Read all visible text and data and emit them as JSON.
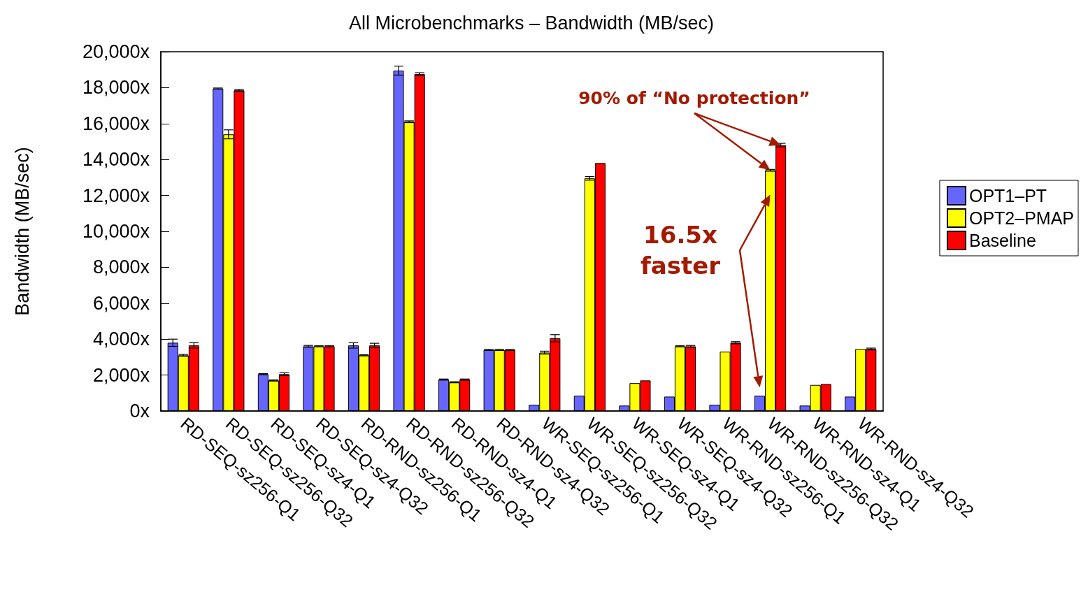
{
  "chart_data": {
    "type": "bar",
    "title": "All Microbenchmarks – Bandwidth (MB/sec)",
    "ylabel": "Bandwidth (MB/sec)",
    "categories": [
      "RD-SEQ-sz256-Q1",
      "RD-SEQ-sz256-Q32",
      "RD-SEQ-sz4-Q1",
      "RD-SEQ-sz4-Q32",
      "RD-RND-sz256-Q1",
      "RD-RND-sz256-Q32",
      "RD-RND-sz4-Q1",
      "RD-RND-sz4-Q32",
      "WR-SEQ-sz256-Q1",
      "WR-SEQ-sz256-Q32",
      "WR-SEQ-sz4-Q1",
      "WR-SEQ-sz4-Q32",
      "WR-RND-sz256-Q1",
      "WR-RND-sz256-Q32",
      "WR-RND-sz4-Q1",
      "WR-RND-sz4-Q32"
    ],
    "series": [
      {
        "name": "OPT1–PT",
        "color": "#6666ff",
        "values": [
          3800,
          17950,
          2050,
          3600,
          3650,
          18950,
          1750,
          3400,
          350,
          850,
          300,
          800,
          350,
          850,
          300,
          800
        ],
        "errors": [
          200,
          30,
          30,
          50,
          150,
          250,
          30,
          30,
          null,
          null,
          null,
          null,
          null,
          null,
          null,
          null
        ]
      },
      {
        "name": "OPT2–PMAP",
        "color": "#ffff00",
        "values": [
          3100,
          15400,
          1700,
          3600,
          3100,
          16100,
          1600,
          3400,
          3250,
          12950,
          1550,
          3600,
          3300,
          13400,
          1450,
          3450
        ],
        "errors": [
          50,
          250,
          30,
          30,
          30,
          50,
          30,
          30,
          80,
          100,
          null,
          30,
          null,
          50,
          null,
          null
        ]
      },
      {
        "name": "Baseline",
        "color": "#ff0000",
        "values": [
          3650,
          17850,
          2050,
          3600,
          3650,
          18750,
          1750,
          3400,
          4050,
          13800,
          1700,
          3600,
          3800,
          14800,
          1500,
          3450
        ],
        "errors": [
          150,
          50,
          80,
          30,
          120,
          80,
          30,
          30,
          200,
          null,
          null,
          50,
          60,
          100,
          null,
          50
        ]
      }
    ],
    "ylim": [
      0,
      20000
    ],
    "yticks": [
      {
        "value": 0,
        "label": "0x"
      },
      {
        "value": 2000,
        "label": "2,000x"
      },
      {
        "value": 4000,
        "label": "4,000x"
      },
      {
        "value": 6000,
        "label": "6,000x"
      },
      {
        "value": 8000,
        "label": "8,000x"
      },
      {
        "value": 10000,
        "label": "10,000x"
      },
      {
        "value": 12000,
        "label": "12,000x"
      },
      {
        "value": 14000,
        "label": "14,000x"
      },
      {
        "value": 16000,
        "label": "16,000x"
      },
      {
        "value": 18000,
        "label": "18,000x"
      },
      {
        "value": 20000,
        "label": "20,000x"
      }
    ],
    "legend": "right",
    "annotations": [
      "90% of “No protection”",
      {
        "text": "16.5x\nfaster",
        "x": "WR-RND-sz256-Q32",
        "y": 13400
      }
    ]
  }
}
